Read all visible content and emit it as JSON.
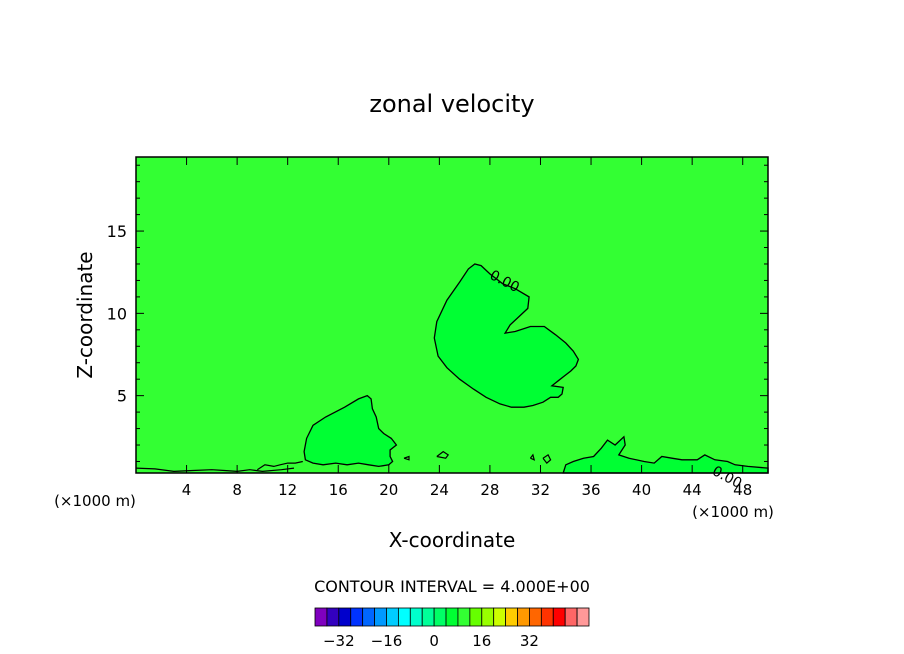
{
  "chart_data": {
    "type": "contour",
    "title": "zonal velocity",
    "xlabel": "X-coordinate",
    "ylabel": "Z-coordinate",
    "x_unit_left": "(×1000 m)",
    "x_unit_right": "(×1000 m)",
    "xlim": [
      0,
      50
    ],
    "ylim": [
      0.3,
      19.5
    ],
    "xticks": [
      4,
      8,
      12,
      16,
      20,
      24,
      28,
      32,
      36,
      40,
      44,
      48
    ],
    "yticks": [
      5,
      10,
      15
    ],
    "background_color": "#33ff33",
    "regions": [
      {
        "label": "0.00",
        "color": "#00ff33",
        "points": [
          [
            23.6,
            8.5
          ],
          [
            23.8,
            9.5
          ],
          [
            24.6,
            10.8
          ],
          [
            25.6,
            11.9
          ],
          [
            26.3,
            12.7
          ],
          [
            26.8,
            13.0
          ],
          [
            27.3,
            12.9
          ],
          [
            28.0,
            12.4
          ],
          [
            29.0,
            11.8
          ],
          [
            30.0,
            11.5
          ],
          [
            31.1,
            11.0
          ],
          [
            31.0,
            10.3
          ],
          [
            30.3,
            9.8
          ],
          [
            29.6,
            9.3
          ],
          [
            29.2,
            8.8
          ],
          [
            30.0,
            8.9
          ],
          [
            31.2,
            9.2
          ],
          [
            32.3,
            9.2
          ],
          [
            33.2,
            8.7
          ],
          [
            34.0,
            8.2
          ],
          [
            34.6,
            7.7
          ],
          [
            35.0,
            7.2
          ],
          [
            34.8,
            6.8
          ],
          [
            34.4,
            6.5
          ],
          [
            33.9,
            6.2
          ],
          [
            33.4,
            5.9
          ],
          [
            32.9,
            5.6
          ],
          [
            33.8,
            5.5
          ],
          [
            33.7,
            5.1
          ],
          [
            33.4,
            4.9
          ],
          [
            32.8,
            4.9
          ],
          [
            32.2,
            4.6
          ],
          [
            31.4,
            4.4
          ],
          [
            30.7,
            4.3
          ],
          [
            29.7,
            4.3
          ],
          [
            28.8,
            4.5
          ],
          [
            27.7,
            4.9
          ],
          [
            26.7,
            5.4
          ],
          [
            25.6,
            6.0
          ],
          [
            24.6,
            6.7
          ],
          [
            23.9,
            7.4
          ]
        ]
      },
      {
        "label": "",
        "color": "#00ff33",
        "points": [
          [
            13.3,
            1.6
          ],
          [
            13.5,
            2.4
          ],
          [
            14.0,
            3.2
          ],
          [
            15.0,
            3.7
          ],
          [
            16.5,
            4.3
          ],
          [
            17.6,
            4.8
          ],
          [
            18.3,
            5.0
          ],
          [
            18.6,
            4.8
          ],
          [
            18.7,
            4.2
          ],
          [
            19.0,
            3.7
          ],
          [
            19.2,
            3.0
          ],
          [
            19.6,
            2.7
          ],
          [
            20.2,
            2.4
          ],
          [
            20.6,
            2.0
          ],
          [
            20.1,
            1.7
          ],
          [
            20.1,
            1.3
          ],
          [
            20.3,
            1.0
          ],
          [
            20.0,
            0.8
          ],
          [
            19.2,
            0.7
          ],
          [
            18.4,
            0.8
          ],
          [
            17.6,
            0.9
          ],
          [
            16.7,
            0.8
          ],
          [
            15.8,
            0.9
          ],
          [
            14.8,
            0.8
          ],
          [
            14.0,
            0.9
          ],
          [
            13.4,
            1.1
          ]
        ]
      },
      {
        "label": "0.00",
        "color": "#00ff33",
        "points": [
          [
            33.8,
            0.3
          ],
          [
            34.0,
            0.8
          ],
          [
            34.6,
            1.0
          ],
          [
            35.4,
            1.2
          ],
          [
            36.2,
            1.3
          ],
          [
            36.8,
            1.8
          ],
          [
            37.3,
            2.3
          ],
          [
            37.9,
            2.0
          ],
          [
            38.6,
            2.5
          ],
          [
            38.7,
            2.0
          ],
          [
            38.2,
            1.4
          ],
          [
            39.0,
            1.2
          ],
          [
            40.2,
            1.0
          ],
          [
            41.0,
            0.9
          ],
          [
            41.6,
            1.3
          ],
          [
            42.4,
            1.2
          ],
          [
            43.2,
            1.1
          ],
          [
            44.4,
            1.1
          ],
          [
            45.0,
            1.4
          ],
          [
            45.8,
            1.1
          ],
          [
            46.8,
            1.0
          ],
          [
            47.4,
            0.8
          ],
          [
            48.4,
            0.7
          ],
          [
            50.0,
            0.6
          ],
          [
            50.0,
            0.3
          ]
        ]
      }
    ],
    "extra_contours": [
      [
        [
          0,
          0.6
        ],
        [
          1.5,
          0.55
        ],
        [
          3,
          0.4
        ],
        [
          4.5,
          0.45
        ],
        [
          6,
          0.5
        ],
        [
          7,
          0.45
        ],
        [
          8,
          0.4
        ],
        [
          9,
          0.5
        ],
        [
          10,
          0.4
        ],
        [
          11.5,
          0.5
        ],
        [
          12.5,
          0.6
        ]
      ],
      [
        [
          9.6,
          0.5
        ],
        [
          10.2,
          0.8
        ],
        [
          10.9,
          0.7
        ],
        [
          11.4,
          0.8
        ],
        [
          12.0,
          0.9
        ],
        [
          12.6,
          0.9
        ],
        [
          13.2,
          1.0
        ]
      ],
      [
        [
          23.8,
          1.3
        ],
        [
          24.5,
          1.2
        ],
        [
          24.7,
          1.4
        ],
        [
          24.3,
          1.6
        ],
        [
          23.8,
          1.3
        ]
      ],
      [
        [
          21.2,
          1.2
        ],
        [
          21.6,
          1.1
        ],
        [
          21.6,
          1.3
        ],
        [
          21.2,
          1.2
        ]
      ],
      [
        [
          32.2,
          1.2
        ],
        [
          32.6,
          1.4
        ],
        [
          32.8,
          1.1
        ],
        [
          32.5,
          0.9
        ],
        [
          32.2,
          1.2
        ]
      ],
      [
        [
          31.2,
          1.2
        ],
        [
          31.4,
          1.4
        ],
        [
          31.5,
          1.1
        ],
        [
          31.2,
          1.2
        ]
      ]
    ],
    "colorbar": {
      "colors": [
        "#7f00bf",
        "#3300bf",
        "#0000cc",
        "#0033ff",
        "#0066ff",
        "#0099ff",
        "#00ccff",
        "#00ffff",
        "#00ffcc",
        "#00ff99",
        "#00ff66",
        "#00ff33",
        "#33ff33",
        "#66ff00",
        "#99ff00",
        "#ccff00",
        "#ffcc00",
        "#ff9900",
        "#ff6600",
        "#ff3300",
        "#ff0000",
        "#ff6666",
        "#ff9999"
      ],
      "tick_labels": [
        "-32",
        "-16",
        "0",
        "16",
        "32"
      ],
      "tick_positions": [
        -32,
        -16,
        0,
        16,
        32
      ],
      "value_start": -40,
      "interval": 4
    },
    "contour_interval_text": "CONTOUR INTERVAL = 4.000E+00"
  }
}
